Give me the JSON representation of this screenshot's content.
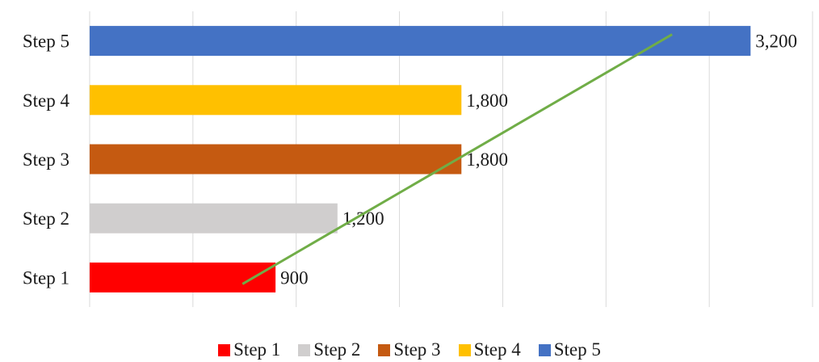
{
  "chart_data": {
    "type": "bar",
    "orientation": "horizontal",
    "categories": [
      "Step 1",
      "Step 2",
      "Step 3",
      "Step 4",
      "Step 5"
    ],
    "values": [
      900,
      1200,
      1800,
      1800,
      3200
    ],
    "value_labels": [
      "900",
      "1,200",
      "1,800",
      "1,800",
      "3,200"
    ],
    "colors": [
      "#FF0000",
      "#D0CECE",
      "#C55A11",
      "#FFC000",
      "#4472C4"
    ],
    "xlim": [
      0,
      3500
    ],
    "grid": true,
    "legend_position": "bottom",
    "legend": [
      "Step 1",
      "Step 2",
      "Step 3",
      "Step 4",
      "Step 5"
    ],
    "trendline": {
      "type": "linear",
      "color": "#70AD47"
    },
    "title": "",
    "xlabel": "",
    "ylabel": ""
  }
}
